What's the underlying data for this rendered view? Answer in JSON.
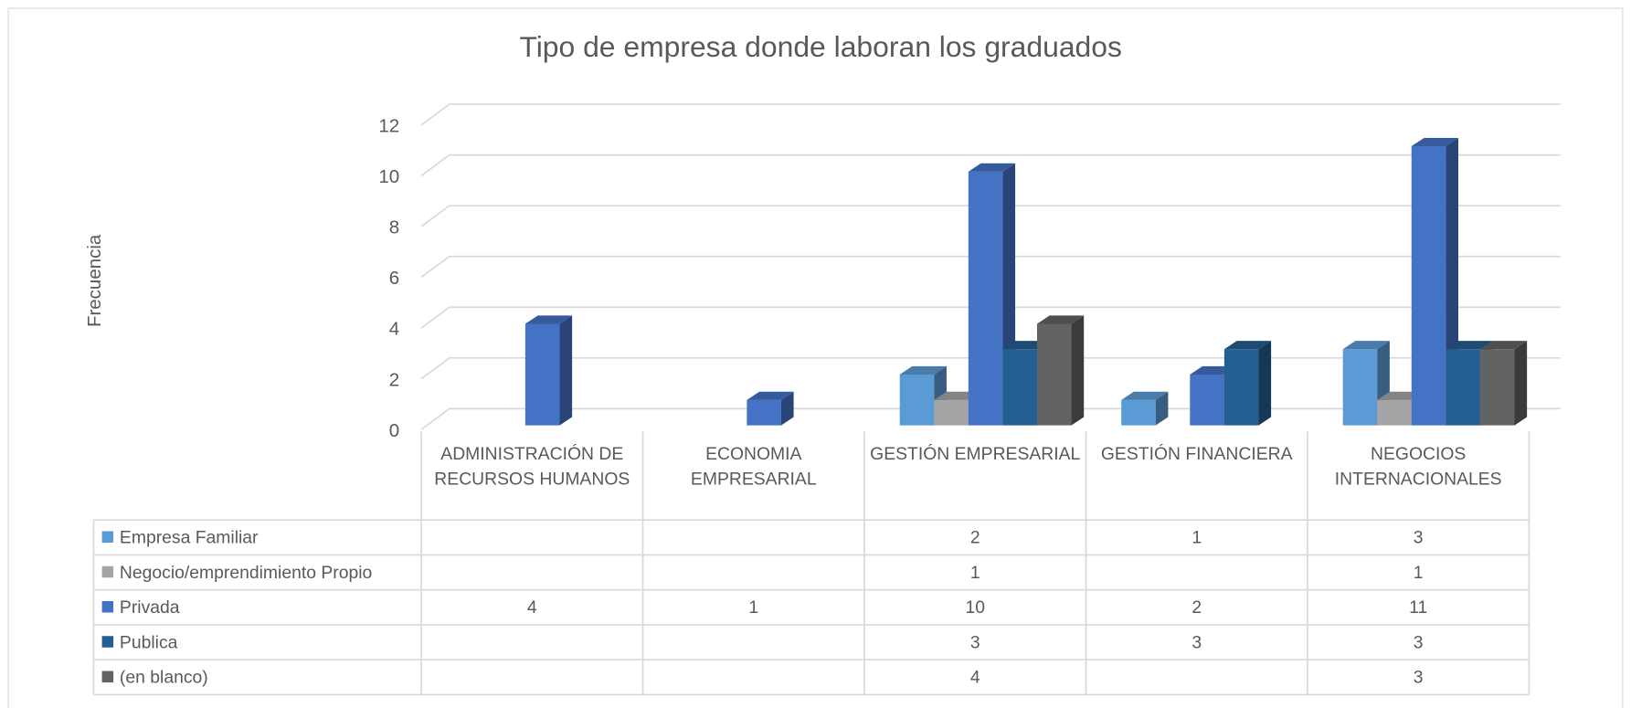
{
  "chart_data": {
    "type": "bar3d",
    "title": "Tipo de empresa donde laboran los graduados",
    "y_label": "Frecuencia",
    "categories": [
      "ADMINISTRACIÓN DE RECURSOS HUMANOS",
      "ECONOMIA EMPRESARIAL",
      "GESTIÓN EMPRESARIAL",
      "GESTIÓN FINANCIERA",
      "NEGOCIOS INTERNACIONALES"
    ],
    "series": [
      {
        "name": "Empresa Familiar",
        "color": "#5b9bd5",
        "values": [
          null,
          null,
          2,
          1,
          3
        ]
      },
      {
        "name": "Negocio/emprendimiento Propio",
        "color": "#a5a5a5",
        "values": [
          null,
          null,
          1,
          null,
          1
        ]
      },
      {
        "name": "Privada",
        "color": "#4472c4",
        "values": [
          4,
          1,
          10,
          2,
          11
        ]
      },
      {
        "name": "Publica",
        "color": "#255e91",
        "values": [
          null,
          null,
          3,
          3,
          3
        ]
      },
      {
        "name": "(en blanco)",
        "color": "#636363",
        "values": [
          null,
          null,
          4,
          null,
          3
        ]
      }
    ],
    "ylim": [
      0,
      12
    ],
    "yticks": [
      0,
      2,
      4,
      6,
      8,
      10,
      12
    ],
    "grid": true
  }
}
